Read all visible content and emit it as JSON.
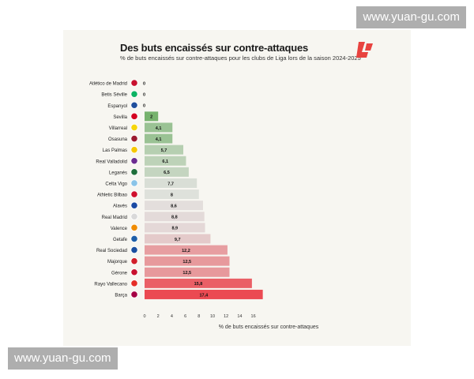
{
  "title": "Des buts encaissés sur contre-attaques",
  "subtitle": "% de buts encaissés sur contre-attaques pour les clubs de Liga lors de la saison 2024-2025",
  "watermarks": {
    "top": "www.yuan-gu.com",
    "bottom": "www.yuan-gu.com"
  },
  "chart_data": {
    "type": "bar",
    "orientation": "horizontal",
    "title": "Des buts encaissés sur contre-attaques",
    "subtitle": "% de buts encaissés sur contre-attaques pour les clubs de Liga lors de la saison 2024-2025",
    "xlabel": "% de buts encaissés sur contre-attaques",
    "ylabel": "",
    "xlim": [
      0,
      17
    ],
    "xticks": [
      0,
      2,
      4,
      6,
      8,
      10,
      12,
      14,
      16
    ],
    "categories": [
      "Atlético de Madrid",
      "Betis Séville",
      "Espanyol",
      "Sevilla",
      "Villarreal",
      "Osasuna",
      "Las Palmas",
      "Real Valladolid",
      "Leganés",
      "Celta Vigo",
      "Athletic Bilbao",
      "Alavés",
      "Real Madrid",
      "Valence",
      "Getafe",
      "Real Sociedad",
      "Majorque",
      "Gérone",
      "Rayo Vallecano",
      "Barça"
    ],
    "values": [
      0,
      0,
      0,
      2,
      4.1,
      4.1,
      5.7,
      6.1,
      6.5,
      7.7,
      8,
      8.6,
      8.8,
      8.9,
      9.7,
      12.2,
      12.5,
      12.5,
      15.8,
      17.4
    ],
    "labels": [
      "0",
      "0",
      "0",
      "2",
      "4,1",
      "4,1",
      "5,7",
      "6,1",
      "6,5",
      "7,7",
      "8",
      "8,6",
      "8,8",
      "8,9",
      "9,7",
      "12,2",
      "12,5",
      "12,5",
      "15,8",
      "17,4"
    ],
    "badge_colors": [
      "#c8102e",
      "#0bb363",
      "#1f4e9c",
      "#d4001f",
      "#f5d60a",
      "#9b1b30",
      "#f6c800",
      "#6b2c91",
      "#1e6e3b",
      "#8ac4e8",
      "#d0102e",
      "#1a4aa3",
      "#d9d9d9",
      "#f08c00",
      "#1d5ea8",
      "#1a4fa0",
      "#d11f2a",
      "#c8102e",
      "#e52d27",
      "#a50044"
    ],
    "palette": {
      "low": "#76b26d",
      "mid": "#e3e3e1",
      "high": "#eb4a52"
    },
    "grid": false,
    "legend": "none"
  }
}
